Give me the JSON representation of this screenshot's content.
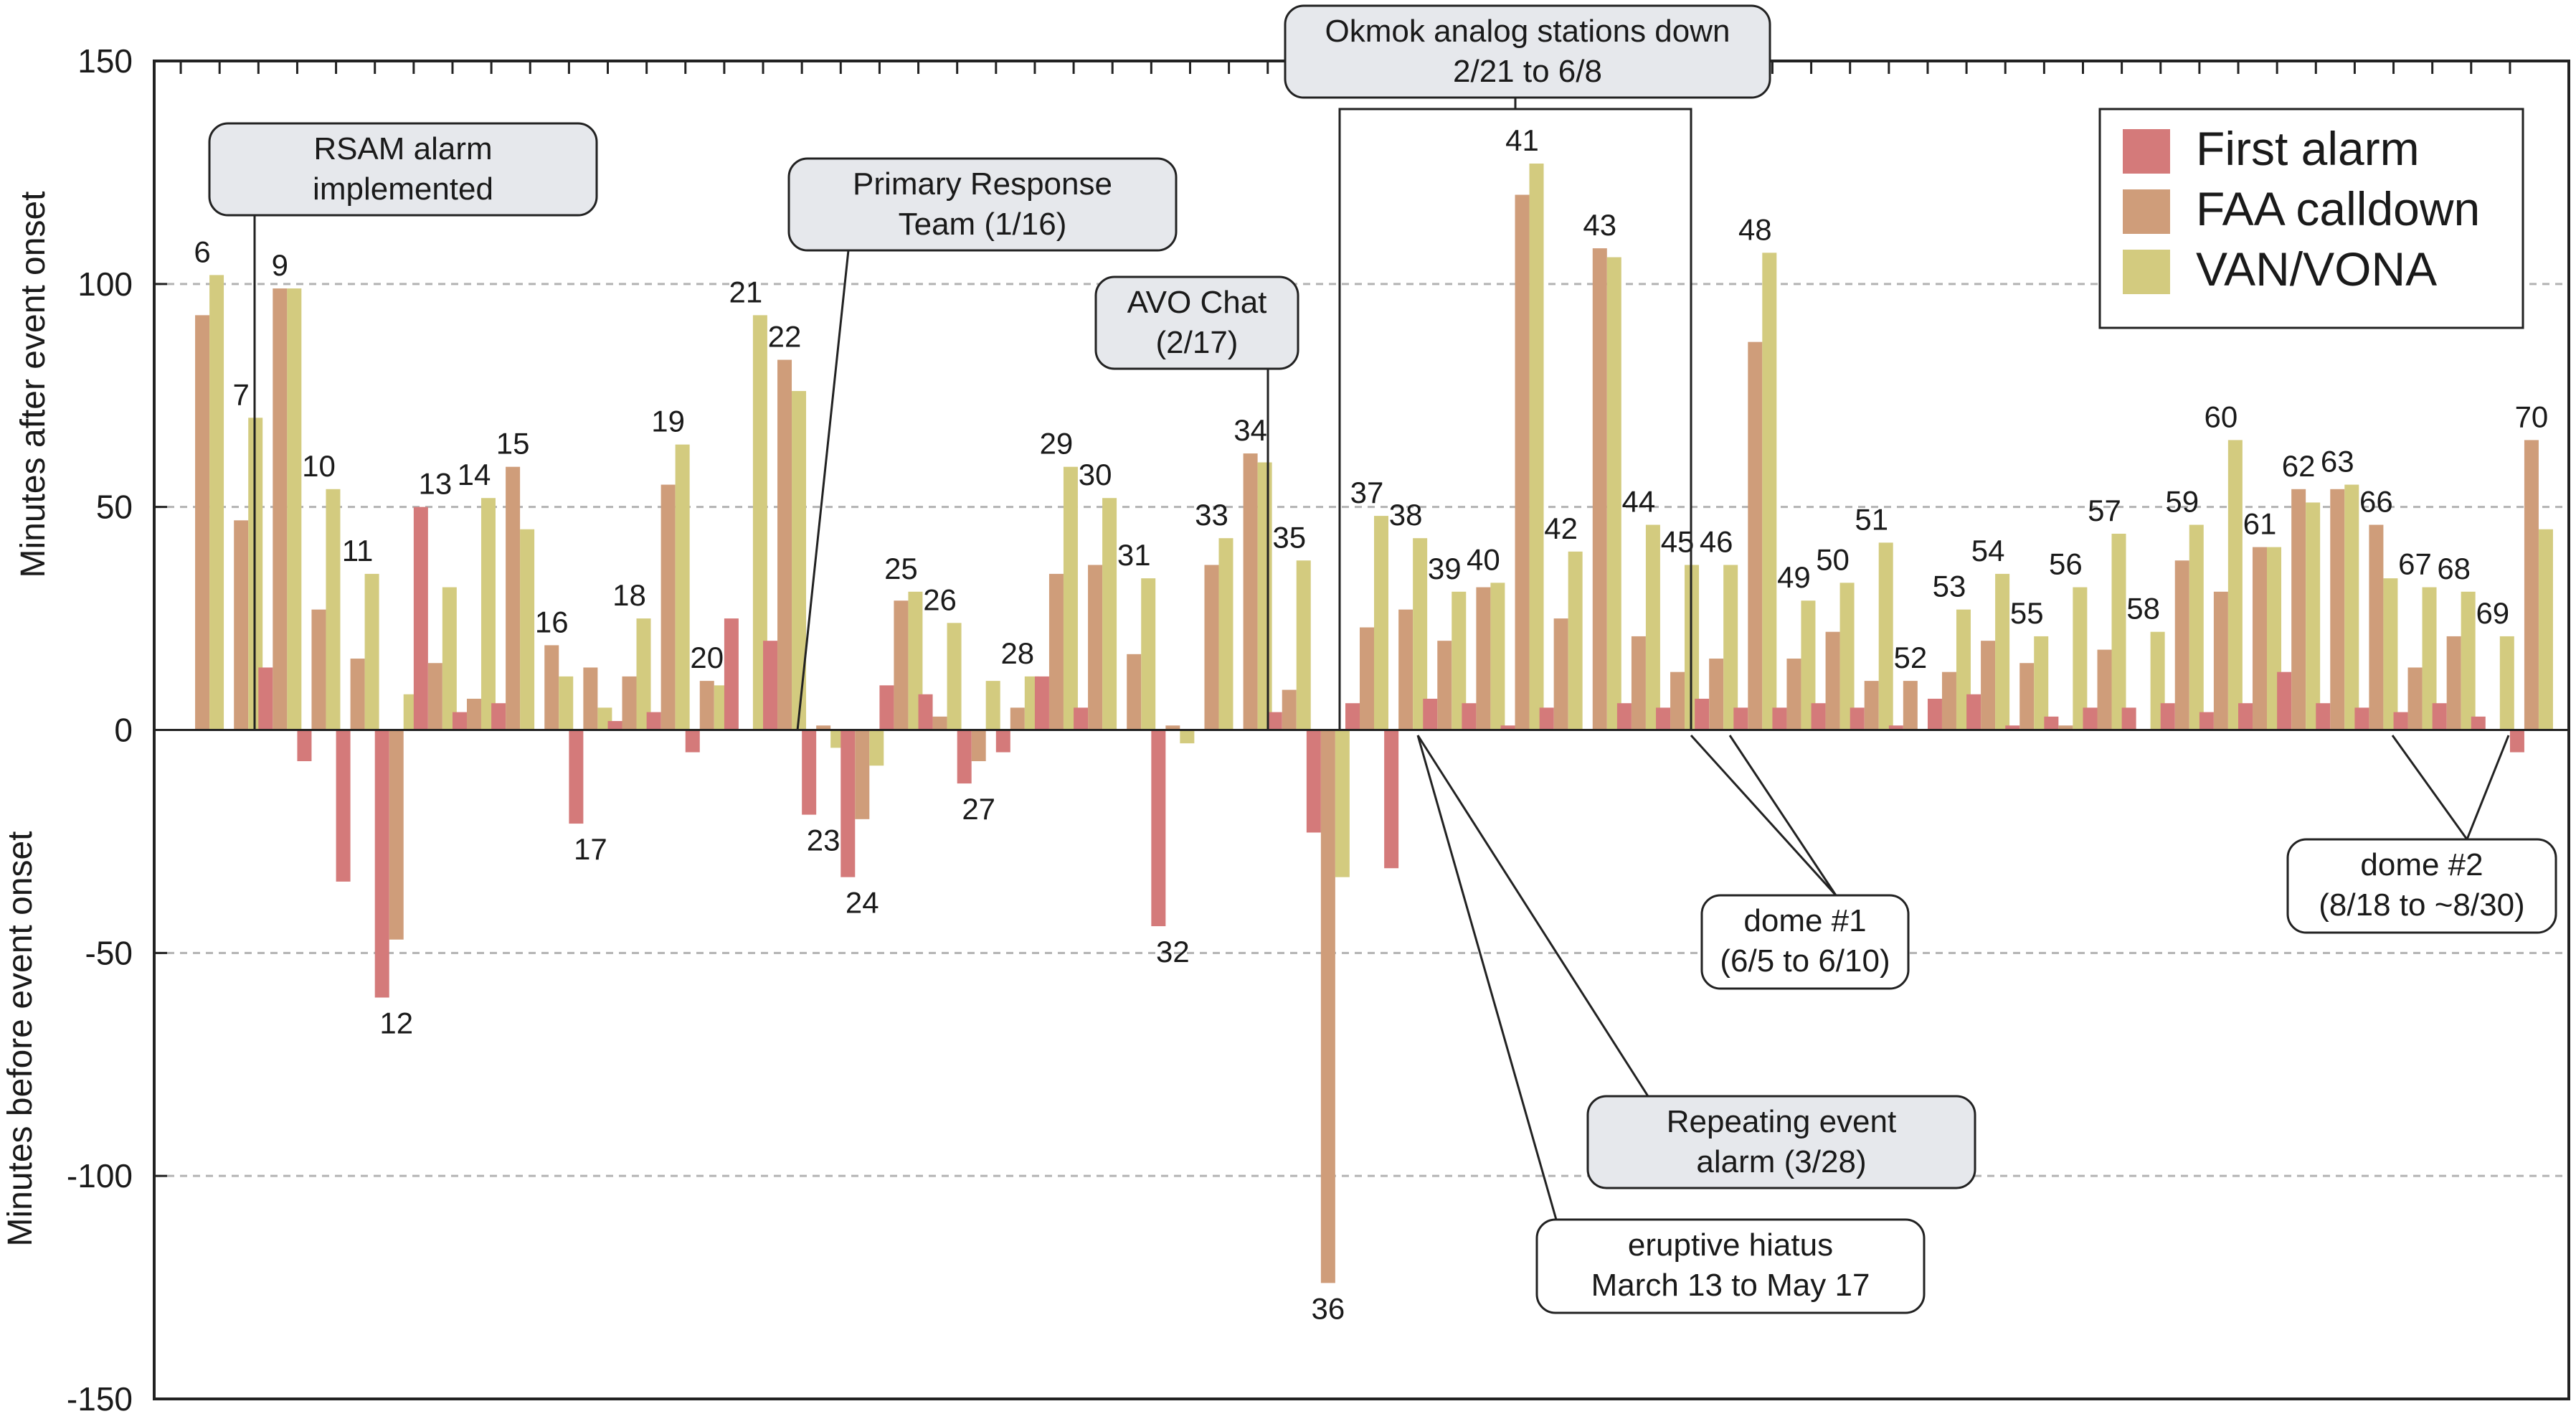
{
  "colors": {
    "first_alarm": "#d47a7a",
    "faa_calldown": "#cf9d7a",
    "van_vona": "#d3cb7f",
    "callout_fill": "#e6e8ec",
    "gridline": "#b3b3b3"
  },
  "chart_data": {
    "type": "bar",
    "title": "",
    "xlabel": "",
    "ylabel_top": "Minutes after event onset",
    "ylabel_bottom": "Minutes before event onset",
    "ylim": [
      -150,
      150
    ],
    "yticks": [
      150,
      100,
      50,
      0,
      -50,
      -100,
      -150
    ],
    "grid": "dashed horizontal at ±50, ±100",
    "legend_position": "top-right",
    "series": [
      {
        "key": "first_alarm",
        "name": "First alarm"
      },
      {
        "key": "faa_calldown",
        "name": "FAA calldown"
      },
      {
        "key": "van_vona",
        "name": "VAN/VONA"
      }
    ],
    "events": [
      {
        "label": "6",
        "values": [
          null,
          93,
          102
        ]
      },
      {
        "label": "7",
        "values": [
          null,
          47,
          70
        ]
      },
      {
        "label": "9",
        "values": [
          14,
          99,
          99
        ]
      },
      {
        "label": "10",
        "values": [
          -7,
          27,
          54
        ]
      },
      {
        "label": "11",
        "values": [
          -34,
          16,
          35
        ]
      },
      {
        "label": "12",
        "values": [
          -60,
          -47,
          8
        ]
      },
      {
        "label": "13",
        "values": [
          50,
          15,
          32
        ]
      },
      {
        "label": "14",
        "values": [
          4,
          7,
          52
        ]
      },
      {
        "label": "15",
        "values": [
          6,
          59,
          45
        ]
      },
      {
        "label": "16",
        "values": [
          null,
          19,
          12
        ]
      },
      {
        "label": "17",
        "values": [
          -21,
          14,
          5
        ]
      },
      {
        "label": "18",
        "values": [
          2,
          12,
          25
        ]
      },
      {
        "label": "19",
        "values": [
          4,
          55,
          64
        ]
      },
      {
        "label": "20",
        "values": [
          -5,
          11,
          10
        ]
      },
      {
        "label": "21",
        "values": [
          25,
          null,
          93
        ]
      },
      {
        "label": "22",
        "values": [
          20,
          83,
          76
        ]
      },
      {
        "label": "23",
        "values": [
          -19,
          1,
          -4
        ]
      },
      {
        "label": "24",
        "values": [
          -33,
          -20,
          -8
        ]
      },
      {
        "label": "25",
        "values": [
          10,
          29,
          31
        ]
      },
      {
        "label": "26",
        "values": [
          8,
          3,
          24
        ]
      },
      {
        "label": "27",
        "values": [
          -12,
          -7,
          11
        ]
      },
      {
        "label": "28",
        "values": [
          -5,
          5,
          12
        ]
      },
      {
        "label": "29",
        "values": [
          12,
          35,
          59
        ]
      },
      {
        "label": "30",
        "values": [
          5,
          37,
          52
        ]
      },
      {
        "label": "31",
        "values": [
          null,
          17,
          34
        ]
      },
      {
        "label": "32",
        "values": [
          -44,
          1,
          -3
        ]
      },
      {
        "label": "33",
        "values": [
          null,
          37,
          43
        ]
      },
      {
        "label": "34",
        "values": [
          null,
          62,
          60
        ]
      },
      {
        "label": "35",
        "values": [
          4,
          9,
          38
        ]
      },
      {
        "label": "36",
        "values": [
          -23,
          -124,
          -33
        ]
      },
      {
        "label": "37",
        "values": [
          6,
          23,
          48
        ]
      },
      {
        "label": "38",
        "values": [
          -31,
          27,
          43
        ]
      },
      {
        "label": "39",
        "values": [
          7,
          20,
          31
        ]
      },
      {
        "label": "40",
        "values": [
          6,
          32,
          33
        ]
      },
      {
        "label": "41",
        "values": [
          1,
          120,
          127
        ]
      },
      {
        "label": "42",
        "values": [
          5,
          25,
          40
        ]
      },
      {
        "label": "43",
        "values": [
          null,
          108,
          106
        ]
      },
      {
        "label": "44",
        "values": [
          6,
          21,
          46
        ]
      },
      {
        "label": "45",
        "values": [
          5,
          13,
          37
        ]
      },
      {
        "label": "46",
        "values": [
          7,
          16,
          37
        ]
      },
      {
        "label": "48",
        "values": [
          5,
          87,
          107
        ]
      },
      {
        "label": "49",
        "values": [
          5,
          16,
          29
        ]
      },
      {
        "label": "50",
        "values": [
          6,
          22,
          33
        ]
      },
      {
        "label": "51",
        "values": [
          5,
          11,
          42
        ]
      },
      {
        "label": "52",
        "values": [
          1,
          11,
          null
        ]
      },
      {
        "label": "53",
        "values": [
          7,
          13,
          27
        ]
      },
      {
        "label": "54",
        "values": [
          8,
          20,
          35
        ]
      },
      {
        "label": "55",
        "values": [
          1,
          15,
          21
        ]
      },
      {
        "label": "56",
        "values": [
          3,
          1,
          32
        ]
      },
      {
        "label": "57",
        "values": [
          5,
          18,
          44
        ]
      },
      {
        "label": "58",
        "values": [
          5,
          null,
          22
        ]
      },
      {
        "label": "59",
        "values": [
          6,
          38,
          46
        ]
      },
      {
        "label": "60",
        "values": [
          4,
          31,
          65
        ]
      },
      {
        "label": "61",
        "values": [
          6,
          41,
          41
        ]
      },
      {
        "label": "62",
        "values": [
          13,
          54,
          51
        ]
      },
      {
        "label": "63",
        "values": [
          6,
          54,
          55
        ]
      },
      {
        "label": "66",
        "values": [
          5,
          46,
          34
        ]
      },
      {
        "label": "67",
        "values": [
          4,
          14,
          32
        ]
      },
      {
        "label": "68",
        "values": [
          6,
          21,
          31
        ]
      },
      {
        "label": "69",
        "values": [
          3,
          null,
          21
        ]
      },
      {
        "label": "70",
        "values": [
          -5,
          65,
          45
        ]
      }
    ],
    "annotations": [
      {
        "key": "rsam",
        "lines": [
          "RSAM alarm",
          "implemented"
        ]
      },
      {
        "key": "prt",
        "lines": [
          "Primary Response",
          "Team (1/16)"
        ]
      },
      {
        "key": "avo",
        "lines": [
          "AVO Chat",
          "(2/17)"
        ]
      },
      {
        "key": "okmok",
        "lines": [
          "Okmok analog stations down",
          "2/21 to 6/8"
        ]
      },
      {
        "key": "dome1",
        "lines": [
          "dome #1",
          "(6/5 to 6/10)"
        ]
      },
      {
        "key": "dome2",
        "lines": [
          "dome #2",
          "(8/18 to ~8/30)"
        ]
      },
      {
        "key": "repeat",
        "lines": [
          "Repeating event",
          "alarm (3/28)"
        ]
      },
      {
        "key": "hiatus",
        "lines": [
          "eruptive hiatus",
          "March 13 to May 17"
        ]
      }
    ]
  }
}
